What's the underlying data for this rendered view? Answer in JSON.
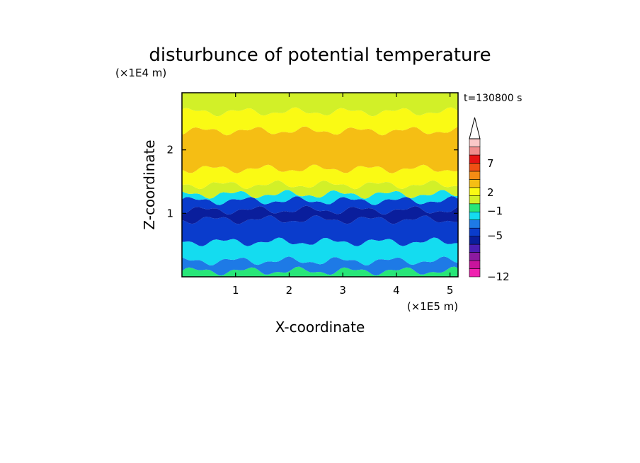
{
  "chart_data": {
    "type": "heatmap",
    "title": "disturbunce of potential temperature",
    "time_label": "t=130800 s",
    "xlabel": "X-coordinate",
    "ylabel": "Z-coordinate",
    "x_unit": "(×1E5 m)",
    "y_unit": "(×1E4 m)",
    "xlim": [
      0,
      5.15
    ],
    "ylim": [
      0,
      2.9
    ],
    "x_ticks": [
      "1",
      "2",
      "3",
      "4",
      "5"
    ],
    "y_ticks": [
      "1",
      "2"
    ],
    "colorbar": {
      "levels": [
        -12,
        -11,
        -9,
        -7,
        -5,
        -4,
        -3,
        -2,
        -1,
        0,
        1,
        2,
        3,
        5,
        7,
        9,
        11
      ],
      "colors": [
        "#f020b0",
        "#c8149c",
        "#8c1aa0",
        "#4b1eb4",
        "#0a1e9c",
        "#0a3ccc",
        "#1e7ae6",
        "#14dcf0",
        "#28e678",
        "#d2f028",
        "#fafa14",
        "#f5be14",
        "#f58c14",
        "#f05014",
        "#e61414",
        "#f08c8c",
        "#fac8c8"
      ],
      "tick_labels": [
        "7",
        "2",
        "−1",
        "−5",
        "−12"
      ],
      "extend": "max"
    },
    "layers": [
      {
        "zmin": 0.0,
        "zmax": 0.09,
        "value": -1
      },
      {
        "zmin": 0.09,
        "zmax": 0.25,
        "value": -3
      },
      {
        "zmin": 0.25,
        "zmax": 0.55,
        "value": -2
      },
      {
        "zmin": 0.55,
        "zmax": 0.9,
        "value": -4
      },
      {
        "zmin": 0.9,
        "zmax": 1.05,
        "value": -5
      },
      {
        "zmin": 1.05,
        "zmax": 1.2,
        "value": -4
      },
      {
        "zmin": 1.2,
        "zmax": 1.3,
        "value": -2
      },
      {
        "zmin": 1.3,
        "zmax": 1.45,
        "value": 0
      },
      {
        "zmin": 1.45,
        "zmax": 1.7,
        "value": 1
      },
      {
        "zmin": 1.7,
        "zmax": 2.3,
        "value": 2
      },
      {
        "zmin": 2.3,
        "zmax": 2.6,
        "value": 1
      },
      {
        "zmin": 2.6,
        "zmax": 2.9,
        "value": 0
      }
    ]
  }
}
